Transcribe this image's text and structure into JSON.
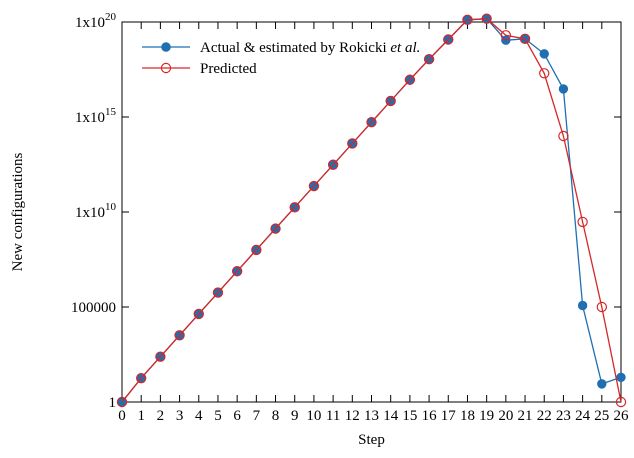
{
  "chart_data": {
    "type": "line",
    "xlabel": "Step",
    "ylabel": "New configurations",
    "y_scale": "log10",
    "xlim": [
      0,
      26
    ],
    "ylim": [
      1,
      1e+20
    ],
    "grid": false,
    "legend_position": "top-left",
    "x_ticks": [
      "0",
      "1",
      "2",
      "3",
      "4",
      "5",
      "6",
      "7",
      "8",
      "9",
      "10",
      "11",
      "12",
      "13",
      "14",
      "15",
      "16",
      "17",
      "18",
      "19",
      "20",
      "21",
      "22",
      "23",
      "24",
      "25",
      "26"
    ],
    "y_ticks": [
      {
        "value": 1,
        "label": "1"
      },
      {
        "value": 100000,
        "label": "100000"
      },
      {
        "value": 10000000000.0,
        "label_base": "1x10",
        "label_exp": "10"
      },
      {
        "value": 1000000000000000.0,
        "label_base": "1x10",
        "label_exp": "15"
      },
      {
        "value": 1e+20,
        "label_base": "1x10",
        "label_exp": "20"
      }
    ],
    "series": [
      {
        "name": "Actual & estimated by Rokicki",
        "name_italic": "et al.",
        "color": "#1f6fb2",
        "marker": "filled-circle",
        "x": [
          0,
          1,
          2,
          3,
          4,
          5,
          6,
          7,
          8,
          9,
          10,
          11,
          12,
          13,
          14,
          15,
          16,
          17,
          18,
          19,
          20,
          21,
          22,
          23,
          24,
          25,
          26
        ],
        "y": [
          1,
          18,
          243,
          3240,
          43239,
          574908,
          7618438,
          100803036,
          1332343288,
          17596479795,
          232248063316,
          3063288809012,
          40374425656248,
          531653418284628,
          6989320578825358,
          91365146187124313,
          1.1e+18,
          1.2e+19,
          1.3e+20,
          1.5e+20,
          1.1e+19,
          1.3e+19,
          2.1e+18,
          3e+16,
          120000,
          9,
          20
        ]
      },
      {
        "name": "Predicted",
        "color": "#d62728",
        "marker": "open-circle",
        "x": [
          0,
          1,
          2,
          3,
          4,
          5,
          6,
          7,
          8,
          9,
          10,
          11,
          12,
          13,
          14,
          15,
          16,
          17,
          18,
          19,
          20,
          21,
          22,
          23,
          24,
          25,
          26
        ],
        "y": [
          1,
          18,
          243,
          3240,
          43239,
          574908,
          7618438,
          100803036,
          1332343288,
          17596479795,
          232248063316,
          3063288809012,
          40374425656248,
          531653418284628,
          6989320578825358,
          91365146187124313,
          1.1e+18,
          1.2e+19,
          1.3e+20,
          1.5e+20,
          2e+19,
          1.3e+19,
          2e+17,
          100000000000000.0,
          3000000000.0,
          100000.0,
          1
        ]
      }
    ]
  }
}
